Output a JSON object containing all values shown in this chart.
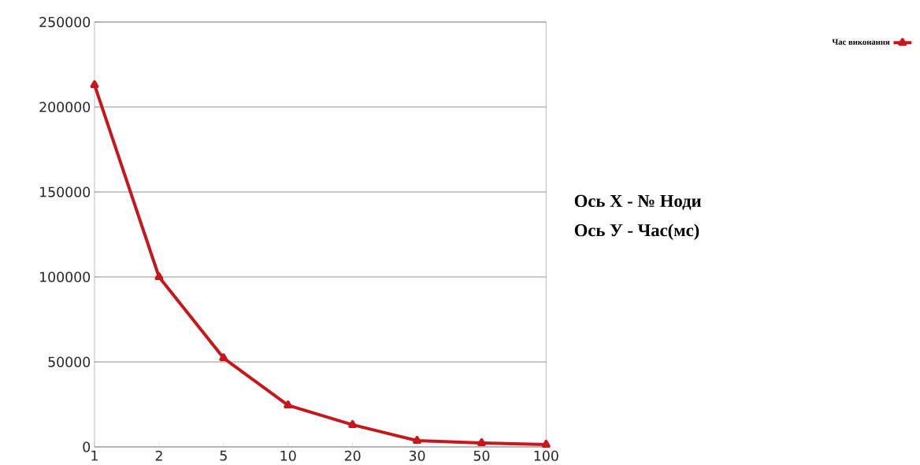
{
  "chart_data": {
    "type": "line",
    "categories": [
      "1",
      "2",
      "5",
      "10",
      "20",
      "30",
      "50",
      "100"
    ],
    "series": [
      {
        "name": "Час виконання",
        "color": "#c8161d",
        "values": [
          213000,
          100000,
          52300,
          24500,
          13000,
          3700,
          2300,
          1400
        ]
      }
    ],
    "ylim": [
      0,
      250000
    ],
    "yticks": [
      0,
      50000,
      100000,
      150000,
      200000,
      250000
    ],
    "grid": "y",
    "legend": "top right",
    "marker": "triangle",
    "line_style": "solid",
    "annotations": [
      "Ось X  - № Ноди",
      "Ось У - Час(мс)"
    ]
  }
}
